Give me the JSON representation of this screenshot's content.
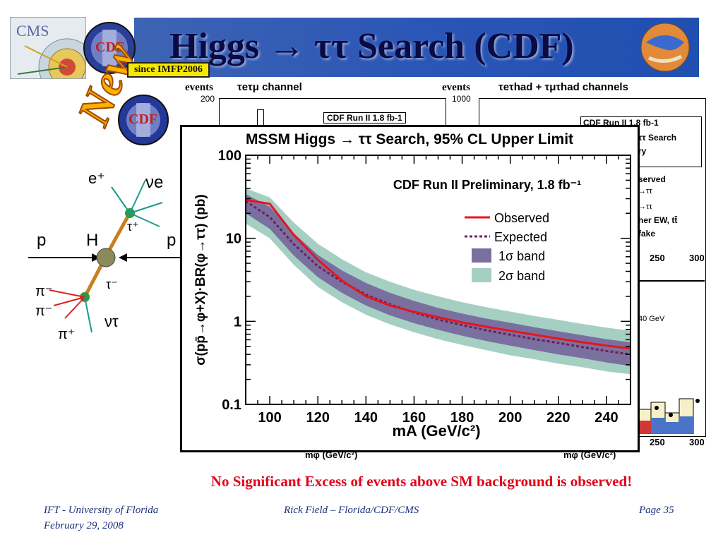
{
  "slide": {
    "title": "Higgs → ττ Search (CDF)",
    "new_badge": "New",
    "since_tag": "since IMFP2006",
    "headline": "No Significant Excess of events above SM background is observed!",
    "footer_left_1": "IFT - University of Florida",
    "footer_left_2": "February 29, 2008",
    "footer_center": "Rick Field – Florida/CDF/CMS",
    "footer_right": "Page 35"
  },
  "logos": {
    "cms_label": "CMS",
    "cdf_label": "CDF"
  },
  "feynman": {
    "labels": [
      "e⁺",
      "νe",
      "τ⁺",
      "p",
      "H",
      "p",
      "τ⁻",
      "π⁻",
      "π⁻",
      "π⁺",
      "ντ"
    ]
  },
  "bg_left": {
    "ylabel": "events",
    "channel": "τeτμ channel",
    "y_top": "200",
    "legend": "CDF Run II 1.8 fb-1",
    "xlabel": "mφ (GeV/c²)"
  },
  "bg_right": {
    "ylabel": "events",
    "channel": "τeτhad + τμτhad channels",
    "y_top": "1000",
    "legend": "CDF Run II 1.8 fb-1",
    "frag_1": "ττ Search",
    "frag_2": "ry",
    "frag_3": "served",
    "frag_4": "→ττ",
    "frag_5": "→ττ",
    "frag_6": "her EW, tt̄",
    "frag_7": "fake",
    "tick_250_a": "250",
    "tick_300_a": "300",
    "frag_8": "40 GeV",
    "tick_250_b": "250",
    "tick_300_b": "300",
    "xlabel": "mφ (GeV/c²)"
  },
  "chart_data": {
    "type": "line",
    "title": "MSSM Higgs → ττ Search, 95% CL Upper Limit",
    "subtitle": "CDF Run II Preliminary, 1.8 fb⁻¹",
    "xlabel": "mA (GeV/c²)",
    "ylabel": "σ(pp̄→φ+X)·BR(φ→ττ) (pb)",
    "xlim": [
      90,
      250
    ],
    "ylim": [
      0.1,
      100
    ],
    "yscale": "log",
    "xticks": [
      "100",
      "120",
      "140",
      "160",
      "180",
      "200",
      "220",
      "240"
    ],
    "yticks": [
      "0.1",
      "1",
      "10",
      "100"
    ],
    "legend_position": "top-right",
    "x": [
      90,
      100,
      110,
      120,
      130,
      140,
      150,
      160,
      170,
      180,
      190,
      200,
      210,
      220,
      230,
      240,
      250
    ],
    "series": [
      {
        "name": "Observed",
        "color": "#e8141c",
        "values": [
          29,
          26,
          11,
          5.5,
          3.1,
          2.0,
          1.55,
          1.3,
          1.12,
          0.97,
          0.86,
          0.77,
          0.69,
          0.62,
          0.56,
          0.51,
          0.47
        ]
      },
      {
        "name": "Expected",
        "color": "#6e1f5c",
        "values": [
          28,
          18,
          8.5,
          4.6,
          3.0,
          2.1,
          1.6,
          1.28,
          1.05,
          0.9,
          0.78,
          0.69,
          0.61,
          0.55,
          0.49,
          0.44,
          0.4
        ]
      }
    ],
    "band_1sigma": {
      "name": "1σ band",
      "color": "#7a70a0",
      "low": [
        20,
        13,
        6.2,
        3.4,
        2.2,
        1.55,
        1.18,
        0.95,
        0.79,
        0.67,
        0.58,
        0.51,
        0.45,
        0.4,
        0.36,
        0.32,
        0.29
      ],
      "high": [
        34,
        24,
        11.5,
        6.3,
        4.1,
        2.9,
        2.2,
        1.76,
        1.45,
        1.24,
        1.08,
        0.96,
        0.85,
        0.76,
        0.68,
        0.61,
        0.56
      ]
    },
    "band_2sigma": {
      "name": "2σ band",
      "color": "#a6cfc4",
      "low": [
        15,
        10,
        4.8,
        2.6,
        1.7,
        1.2,
        0.92,
        0.74,
        0.61,
        0.52,
        0.45,
        0.39,
        0.35,
        0.31,
        0.28,
        0.25,
        0.23
      ],
      "high": [
        40,
        31,
        15.5,
        8.6,
        5.6,
        3.9,
        3.0,
        2.4,
        2.0,
        1.7,
        1.48,
        1.31,
        1.16,
        1.04,
        0.93,
        0.84,
        0.77
      ]
    }
  }
}
